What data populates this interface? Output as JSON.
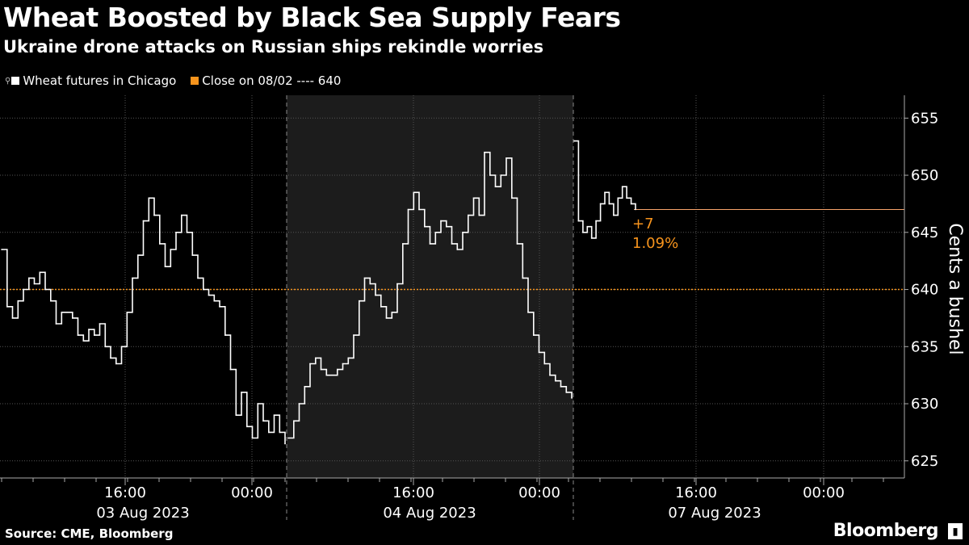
{
  "chart_data": {
    "type": "line",
    "title": "Wheat Boosted by Black Sea Supply Fears",
    "subtitle": "Ukraine drone attacks on Russian ships rekindle worries",
    "ylabel": "Cents a bushel",
    "ylim": [
      623.5,
      657
    ],
    "y_ticks": [
      625,
      630,
      635,
      640,
      645,
      650,
      655
    ],
    "x_tick_labels": [
      "16:00",
      "00:00",
      "16:00",
      "00:00",
      "16:00",
      "00:00"
    ],
    "date_labels": [
      "03 Aug 2023",
      "04 Aug 2023",
      "07 Aug 2023"
    ],
    "legend": [
      {
        "label": "Wheat futures in Chicago",
        "color": "#ffffff"
      },
      {
        "label": "Close on 08/02 ---- 640",
        "color": "#f7941d"
      }
    ],
    "reference_line": {
      "value": 640,
      "color": "#f7941d",
      "style": "dotted"
    },
    "last_value_line": {
      "value": 647,
      "color": "#f7a36b"
    },
    "annotation": {
      "change": "+7",
      "percent": "1.09%",
      "color": "#f7941d"
    },
    "series": [
      {
        "name": "Wheat futures in Chicago",
        "color": "#ffffff",
        "segments": [
          {
            "session": "03 Aug 2023",
            "values": [
              643.5,
              638.5,
              637.5,
              639,
              640,
              641,
              640.5,
              641.5,
              640,
              639,
              637,
              638,
              638,
              637.5,
              636,
              635.5,
              636.5,
              636,
              637,
              635,
              634,
              633.5,
              635,
              638,
              641,
              643,
              646,
              648,
              646.5,
              644,
              642,
              643.5,
              645,
              646.5,
              645,
              643,
              641,
              640,
              639.5,
              639,
              638.5,
              636,
              633,
              629,
              631,
              628,
              627,
              630,
              628.5,
              627.5,
              629,
              627.5,
              626.5
            ]
          },
          {
            "session": "04 Aug 2023",
            "values": [
              627,
              628.5,
              630,
              631.5,
              633.5,
              634,
              633,
              632.5,
              632.5,
              633,
              633.5,
              634,
              636,
              639,
              641,
              640.5,
              639.5,
              638.5,
              637.5,
              638,
              640.5,
              644,
              647,
              648.5,
              647,
              645.5,
              644,
              645,
              646,
              645.5,
              644,
              643.5,
              645,
              646.5,
              648,
              646.5,
              652,
              650,
              649,
              650,
              651.5,
              648,
              644,
              641,
              638,
              636,
              634.5,
              633.5,
              632.5,
              632,
              631.5,
              631,
              630.5
            ]
          },
          {
            "session": "07 Aug 2023",
            "values": [
              653,
              646,
              645,
              645.5,
              644.5,
              646,
              647.5,
              648.5,
              647.5,
              646.5,
              648,
              649,
              648,
              647.5,
              647
            ]
          }
        ]
      }
    ]
  },
  "legend": {
    "series_label": "Wheat futures in Chicago",
    "close_label": "Close on 08/02 ---- 640"
  },
  "footer": {
    "source": "Source: CME, Bloomberg",
    "brand": "Bloomberg"
  }
}
